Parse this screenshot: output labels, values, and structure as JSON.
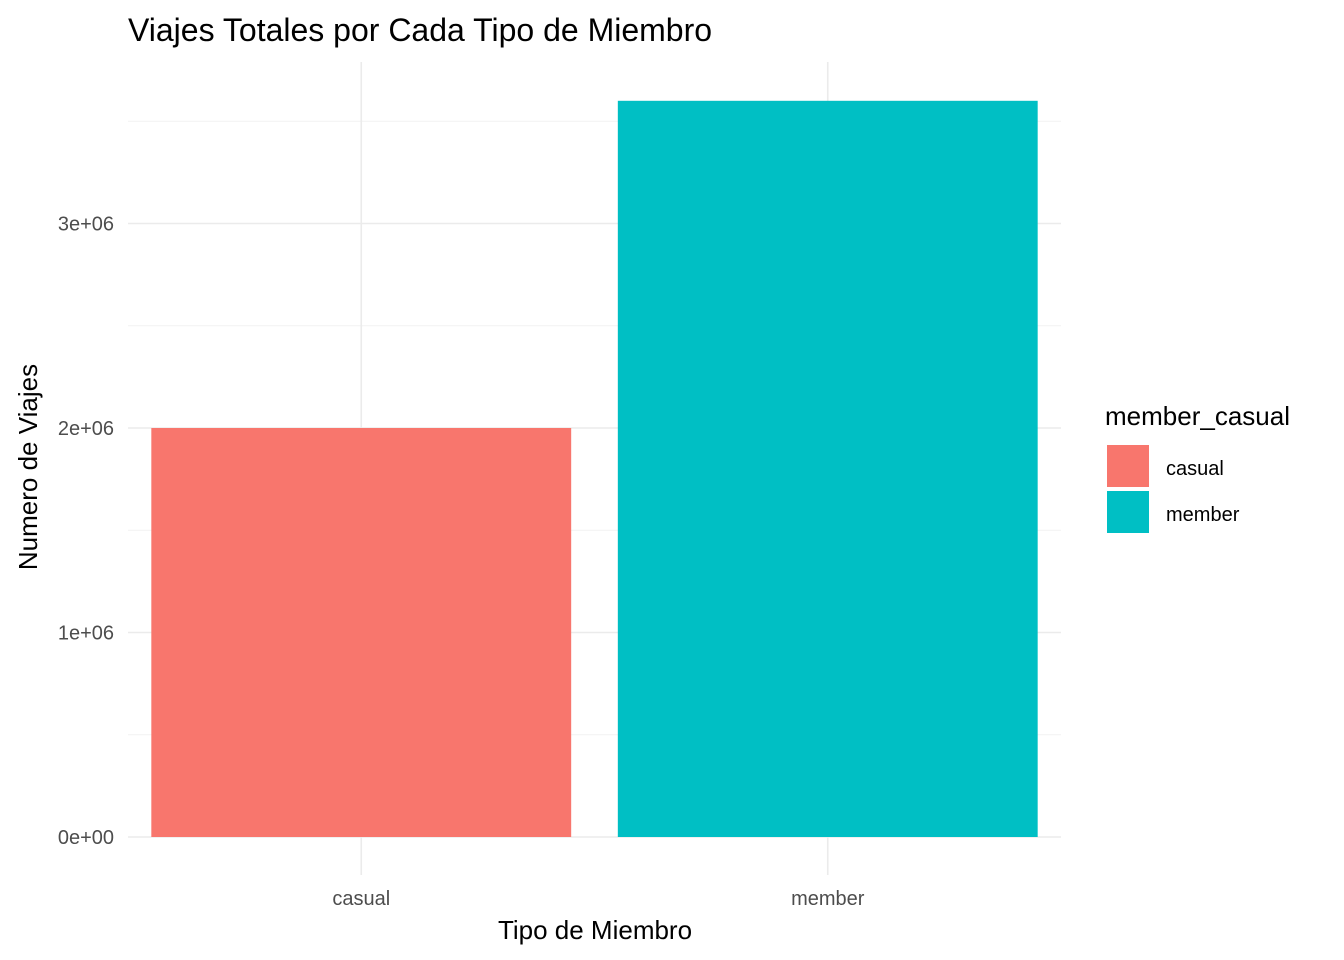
{
  "chart_data": {
    "type": "bar",
    "title": "Viajes Totales por Cada Tipo de Miembro",
    "xlabel": "Tipo de Miembro",
    "ylabel": "Numero de Viajes",
    "categories": [
      "casual",
      "member"
    ],
    "values": [
      2000000,
      3600000
    ],
    "colors": [
      "#F8766D",
      "#00BFC4"
    ],
    "ylim": [
      0,
      3750000
    ],
    "yticks": [
      0,
      1000000,
      2000000,
      3000000
    ],
    "ytick_labels": [
      "0e+00",
      "1e+06",
      "2e+06",
      "3e+06"
    ],
    "grid": true,
    "legend": {
      "title": "member_casual",
      "position": "right",
      "entries": [
        "casual",
        "member"
      ]
    }
  }
}
